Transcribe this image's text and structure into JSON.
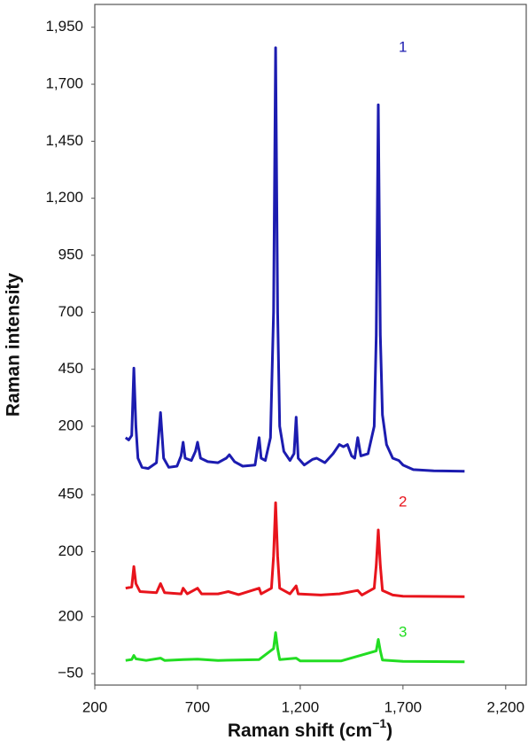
{
  "chart_data": {
    "type": "line",
    "ylabel": "Raman intensity",
    "xlabel": [
      "Raman shift (cm",
      "−1",
      ")"
    ],
    "xlim": [
      200,
      2300
    ],
    "xticks": [
      200,
      700,
      {
        "value": 1200,
        "label": "1,200"
      },
      {
        "value": 1700,
        "label": "1,700"
      },
      {
        "value": 2200,
        "label": "2,200"
      }
    ],
    "panels": [
      {
        "ylim": [
          -50,
          2050
        ],
        "yticks": [
          {
            "value": 1950,
            "label": "1,950"
          },
          {
            "value": 1700,
            "label": "1,700"
          },
          {
            "value": 1450,
            "label": "1,450"
          },
          {
            "value": 1200,
            "label": "1,200"
          },
          950,
          700,
          450,
          200
        ],
        "series": [
          {
            "name": "1",
            "color": "#1c1cb0",
            "x": [
              350,
              365,
              380,
              390,
              400,
              410,
              430,
              460,
              500,
              520,
              535,
              560,
              600,
              620,
              630,
              640,
              670,
              690,
              700,
              715,
              750,
              800,
              840,
              855,
              880,
              920,
              980,
              1000,
              1010,
              1030,
              1055,
              1070,
              1080,
              1090,
              1100,
              1120,
              1150,
              1170,
              1180,
              1190,
              1220,
              1260,
              1280,
              1320,
              1360,
              1390,
              1410,
              1430,
              1450,
              1465,
              1480,
              1495,
              1530,
              1560,
              1570,
              1580,
              1590,
              1600,
              1620,
              1650,
              1680,
              1700,
              1750,
              1850,
              2000
            ],
            "values": [
              150,
              140,
              160,
              455,
              200,
              60,
              20,
              15,
              40,
              260,
              60,
              20,
              25,
              70,
              130,
              60,
              50,
              90,
              130,
              60,
              45,
              40,
              60,
              75,
              45,
              25,
              30,
              150,
              60,
              50,
              150,
              700,
              1860,
              700,
              200,
              90,
              50,
              80,
              240,
              60,
              30,
              55,
              60,
              40,
              80,
              120,
              110,
              120,
              70,
              60,
              150,
              70,
              80,
              200,
              600,
              1610,
              600,
              250,
              120,
              60,
              50,
              30,
              10,
              5,
              3
            ]
          }
        ]
      },
      {
        "ylim": [
          -60,
          500
        ],
        "yticks": [
          450,
          200
        ],
        "series": [
          {
            "name": "2",
            "color": "#e8141c",
            "x": [
              350,
              380,
              390,
              400,
              420,
              500,
              520,
              540,
              620,
              630,
              650,
              700,
              720,
              800,
              850,
              900,
              1000,
              1010,
              1060,
              1070,
              1080,
              1090,
              1100,
              1150,
              1180,
              1190,
              1300,
              1390,
              1480,
              1500,
              1560,
              1570,
              1580,
              1590,
              1600,
              1650,
              1700,
              2000
            ],
            "values": [
              40,
              45,
              135,
              60,
              25,
              20,
              60,
              20,
              15,
              40,
              15,
              40,
              15,
              15,
              25,
              12,
              40,
              15,
              40,
              180,
              415,
              180,
              40,
              15,
              50,
              15,
              10,
              15,
              30,
              10,
              40,
              140,
              295,
              140,
              30,
              10,
              5,
              3
            ]
          }
        ]
      },
      {
        "ylim": [
          -100,
          225
        ],
        "yticks": [
          200,
          {
            "value": -50,
            "label": "−50"
          }
        ],
        "series": [
          {
            "name": "3",
            "color": "#22dd22",
            "x": [
              350,
              380,
              390,
              400,
              450,
              520,
              540,
              630,
              700,
              800,
              1000,
              1070,
              1080,
              1090,
              1100,
              1180,
              1200,
              1400,
              1570,
              1580,
              1590,
              1600,
              1700,
              2000
            ],
            "values": [
              8,
              12,
              30,
              15,
              8,
              18,
              8,
              12,
              14,
              8,
              12,
              60,
              130,
              60,
              12,
              18,
              6,
              6,
              50,
              100,
              50,
              10,
              4,
              2
            ]
          }
        ]
      }
    ]
  }
}
